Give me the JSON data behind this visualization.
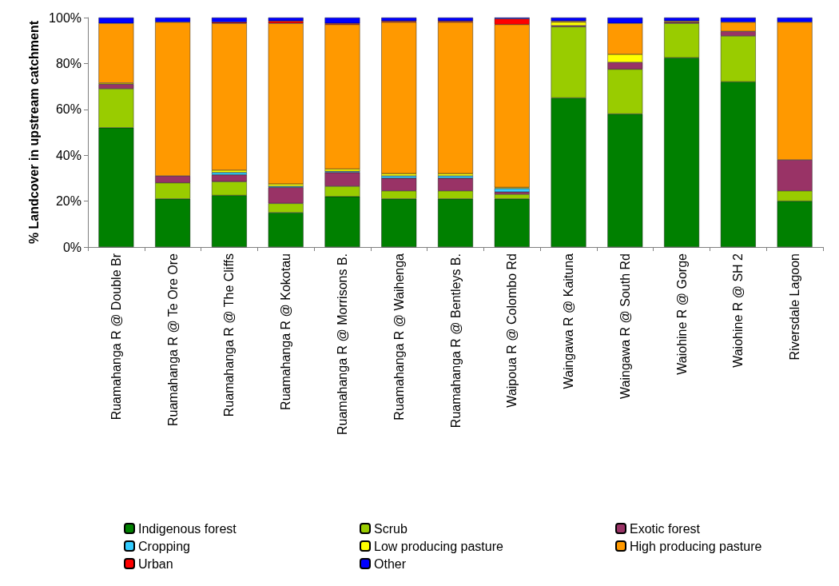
{
  "chart_data": {
    "type": "bar",
    "stacked": true,
    "ylabel": "% Landcover in upstream catchment",
    "categories": [
      "Ruamahanga R @ Double Br",
      "Ruamahanga R @ Te Ore Ore",
      "Ruamahanga R @ The Cliffs",
      "Ruamahanga R @ Kokotau",
      "Ruamahanga R @ Morrisons B.",
      "Ruamahanga R @ Waihenga",
      "Ruamahanga R @ Bentleys B.",
      "Waipoua R @ Colombo Rd",
      "Waingawa R @ Kaituna",
      "Waingawa R @ South Rd",
      "Waiohine R @ Gorge",
      "Waiohine R @ SH 2",
      "Riversdale Lagoon"
    ],
    "series": [
      {
        "name": "Indigenous forest",
        "color": "#008000",
        "values": [
          52,
          21,
          22.5,
          15,
          22,
          21,
          21,
          21,
          65,
          58,
          82.5,
          72,
          20
        ]
      },
      {
        "name": "Scrub",
        "color": "#99cc00",
        "values": [
          17,
          7,
          6,
          4,
          4.5,
          3.5,
          3.5,
          2,
          31,
          19.5,
          15,
          20,
          4.5
        ]
      },
      {
        "name": "Exotic forest",
        "color": "#993366",
        "values": [
          2,
          3,
          3,
          7,
          6,
          5.5,
          5.5,
          1,
          0.5,
          3,
          0.5,
          2,
          13.5
        ]
      },
      {
        "name": "Cropping",
        "color": "#33ccff",
        "values": [
          0,
          0,
          1,
          0.5,
          0.5,
          1,
          1,
          1.5,
          0,
          0,
          0,
          0,
          0
        ]
      },
      {
        "name": "Low producing pasture",
        "color": "#ffff00",
        "values": [
          0.5,
          0,
          1,
          1,
          1,
          1,
          1,
          0.5,
          1.5,
          3.5,
          0,
          0,
          0
        ]
      },
      {
        "name": "High producing pasture",
        "color": "#ff9900",
        "values": [
          26,
          67,
          64,
          70,
          63,
          66,
          66,
          71,
          0.5,
          13.5,
          0.5,
          4,
          60
        ]
      },
      {
        "name": "Urban",
        "color": "#ff0000",
        "values": [
          0,
          0,
          0.5,
          1,
          0.5,
          0.5,
          0.5,
          2.5,
          0,
          0,
          0,
          0,
          0
        ]
      },
      {
        "name": "Other",
        "color": "#0000ff",
        "values": [
          2.5,
          2,
          2,
          1.5,
          2.5,
          1.5,
          1.5,
          0.5,
          1.5,
          2.5,
          1.5,
          2,
          2
        ]
      }
    ],
    "ylim": [
      0,
      100
    ],
    "yticks": [
      {
        "value": 0,
        "label": "0%"
      },
      {
        "value": 20,
        "label": "20%"
      },
      {
        "value": 40,
        "label": "40%"
      },
      {
        "value": 60,
        "label": "60%"
      },
      {
        "value": 80,
        "label": "80%"
      },
      {
        "value": 100,
        "label": "100%"
      }
    ],
    "grid": false,
    "legend": "bottom"
  }
}
